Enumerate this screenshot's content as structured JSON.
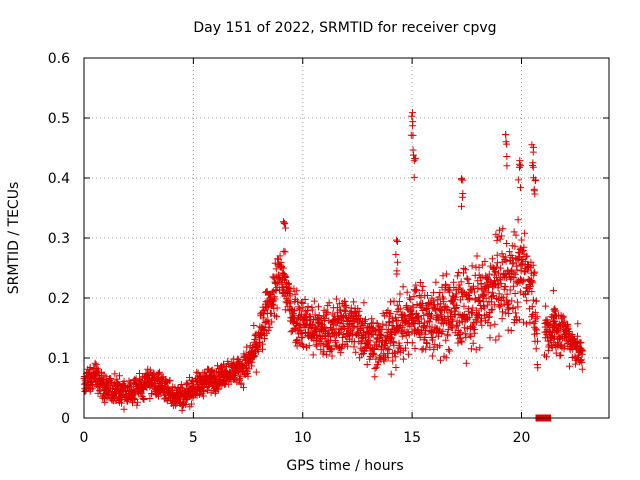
{
  "chart_data": {
    "type": "scatter",
    "title": "Day 151 of 2022, SRMTID for receiver cpvg",
    "xlabel": "GPS time / hours",
    "ylabel": "SRMTID / TECUs",
    "xlim": [
      0,
      24
    ],
    "ylim": [
      0,
      0.6
    ],
    "xticks": [
      0,
      5,
      10,
      15,
      20
    ],
    "yticks": [
      0,
      0.1,
      0.2,
      0.3,
      0.4,
      0.5,
      0.6
    ],
    "xtick_labels": [
      "0",
      "5",
      "10",
      "15",
      "20"
    ],
    "ytick_labels": [
      "0",
      "0.1",
      "0.2",
      "0.3",
      "0.4",
      "0.5",
      "0.6"
    ],
    "grid": true,
    "marker": "plus",
    "series_color": "#e00000",
    "trend": {
      "x": [
        0,
        0.5,
        1,
        1.5,
        2,
        2.5,
        3,
        3.5,
        4,
        4.5,
        5,
        5.5,
        6,
        6.5,
        7,
        7.5,
        8,
        8.5,
        9,
        9.5,
        10,
        10.5,
        11,
        11.5,
        12,
        12.5,
        13,
        13.5,
        14,
        14.5,
        15,
        15.5,
        16,
        16.5,
        17,
        17.5,
        18,
        18.5,
        19,
        19.5,
        20,
        20.5,
        20.8,
        21,
        21.5,
        22,
        22.5,
        22.8
      ],
      "y": [
        0.06,
        0.07,
        0.05,
        0.045,
        0.04,
        0.05,
        0.06,
        0.055,
        0.04,
        0.035,
        0.05,
        0.06,
        0.065,
        0.075,
        0.08,
        0.09,
        0.13,
        0.19,
        0.24,
        0.18,
        0.16,
        0.15,
        0.14,
        0.15,
        0.16,
        0.15,
        0.14,
        0.12,
        0.14,
        0.15,
        0.17,
        0.17,
        0.16,
        0.17,
        0.18,
        0.18,
        0.19,
        0.2,
        0.23,
        0.22,
        0.25,
        0.22,
        0.1,
        0.13,
        0.15,
        0.14,
        0.12,
        0.1
      ]
    },
    "spread": {
      "x": [
        0,
        5,
        7,
        8,
        9,
        10,
        12,
        14,
        15,
        16,
        18,
        19,
        20,
        21,
        22.8
      ],
      "y": [
        0.025,
        0.02,
        0.02,
        0.035,
        0.05,
        0.045,
        0.045,
        0.05,
        0.06,
        0.06,
        0.07,
        0.08,
        0.08,
        0.04,
        0.03
      ]
    },
    "spikes": [
      {
        "x": 9.15,
        "y": 0.33
      },
      {
        "x": 15.0,
        "y": 0.51
      },
      {
        "x": 15.1,
        "y": 0.46
      },
      {
        "x": 17.3,
        "y": 0.4
      },
      {
        "x": 19.3,
        "y": 0.48
      },
      {
        "x": 19.9,
        "y": 0.44
      },
      {
        "x": 20.5,
        "y": 0.47
      },
      {
        "x": 20.6,
        "y": 0.42
      },
      {
        "x": 14.3,
        "y": 0.3
      },
      {
        "x": 21.5,
        "y": 0.22
      }
    ],
    "outliers_zero": {
      "x": [
        20.8,
        20.9,
        21.2
      ],
      "y": [
        0,
        0,
        0
      ]
    },
    "point_density_per_hour": 100,
    "random_seed": 151
  }
}
